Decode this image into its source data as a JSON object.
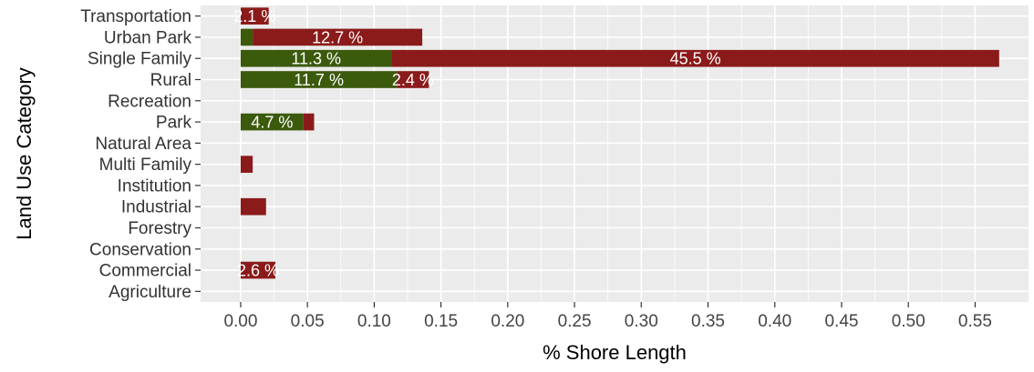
{
  "chart_data": {
    "type": "bar",
    "orientation": "horizontal",
    "stacked": true,
    "xlabel": "% Shore Length",
    "ylabel": "Land Use Category",
    "xlim": [
      -0.03,
      0.59
    ],
    "xticks": [
      "0.00",
      "0.05",
      "0.10",
      "0.15",
      "0.20",
      "0.25",
      "0.30",
      "0.35",
      "0.40",
      "0.45",
      "0.50",
      "0.55"
    ],
    "xtick_values": [
      0,
      0.05,
      0.1,
      0.15,
      0.2,
      0.25,
      0.3,
      0.35,
      0.4,
      0.45,
      0.5,
      0.55
    ],
    "grid": true,
    "categories": [
      "Transportation",
      "Urban Park",
      "Single Family",
      "Rural",
      "Recreation",
      "Park",
      "Natural Area",
      "Multi Family",
      "Institution",
      "Industrial",
      "Forestry",
      "Conservation",
      "Commercial",
      "Agriculture"
    ],
    "series": [
      {
        "color": "#3b5a0c",
        "values": [
          0,
          0.009,
          0.113,
          0.117,
          0,
          0.047,
          0,
          0,
          0,
          0,
          0,
          0,
          0,
          0
        ],
        "labels": [
          "",
          "",
          "11.3 %",
          "11.7 %",
          "",
          "4.7 %",
          "",
          "",
          "",
          "",
          "",
          "",
          "",
          ""
        ]
      },
      {
        "color": "#8b1a1a",
        "values": [
          0.021,
          0.127,
          0.455,
          0.024,
          0,
          0.008,
          0,
          0.009,
          0,
          0.019,
          0,
          0,
          0.026,
          0
        ],
        "labels": [
          "2.1 %",
          "12.7 %",
          "45.5 %",
          "2.4 %",
          "",
          "",
          "",
          "",
          "",
          "",
          "",
          "",
          "2.6 %",
          ""
        ]
      }
    ]
  },
  "colors": {
    "panel_background": "#ebebeb",
    "grid": "#ffffff"
  }
}
